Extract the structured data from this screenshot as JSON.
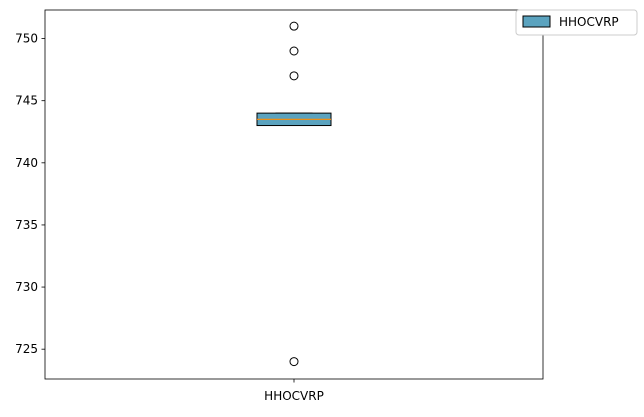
{
  "chart_data": {
    "type": "box",
    "title": "",
    "xlabel": "",
    "ylabel": "",
    "categories": [
      "HHOCVRP"
    ],
    "ylim": [
      722.6,
      752.3
    ],
    "yticks": [
      725,
      730,
      735,
      740,
      745,
      750
    ],
    "grid": false,
    "legend": {
      "placement": "top-right-outside",
      "entries": [
        "HHOCVRP"
      ]
    },
    "series": [
      {
        "name": "HHOCVRP",
        "color": "#5ba3bf",
        "whisker_low": 743,
        "q1": 743,
        "median": 743.5,
        "q3": 744,
        "whisker_high": 744,
        "outliers": [
          751,
          749,
          747,
          724
        ]
      }
    ],
    "median_color": "#ff8c00"
  }
}
